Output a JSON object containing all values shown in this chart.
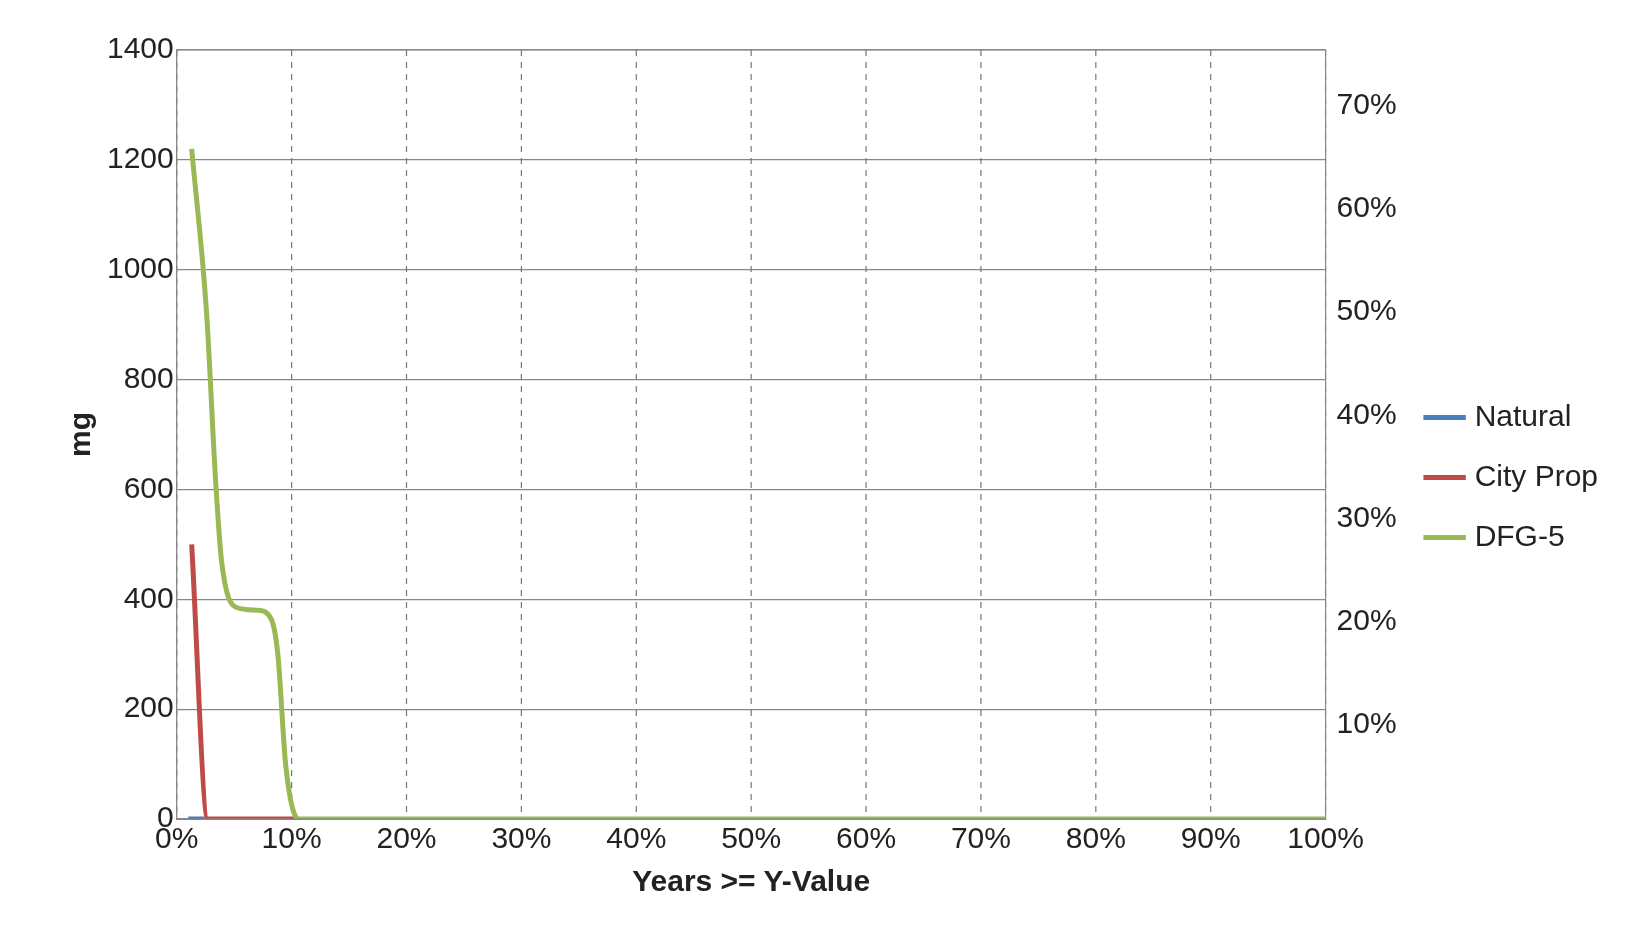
{
  "chart_data": {
    "type": "line",
    "xlabel": "Years >= Y-Value",
    "ylabel": "mg",
    "xlim": [
      0,
      100
    ],
    "xticks": [
      {
        "value": 0,
        "label": "0%"
      },
      {
        "value": 10,
        "label": "10%"
      },
      {
        "value": 20,
        "label": "20%"
      },
      {
        "value": 30,
        "label": "30%"
      },
      {
        "value": 40,
        "label": "40%"
      },
      {
        "value": 50,
        "label": "50%"
      },
      {
        "value": 60,
        "label": "60%"
      },
      {
        "value": 70,
        "label": "70%"
      },
      {
        "value": 80,
        "label": "80%"
      },
      {
        "value": 90,
        "label": "90%"
      },
      {
        "value": 100,
        "label": "100%"
      }
    ],
    "ylim": [
      0,
      1400
    ],
    "yticks": [
      0,
      200,
      400,
      600,
      800,
      1000,
      1200,
      1400
    ],
    "y2lim": [
      0.9,
      75.4
    ],
    "y2ticks": [
      {
        "value": 10,
        "label": "10%"
      },
      {
        "value": 20,
        "label": "20%"
      },
      {
        "value": 30,
        "label": "30%"
      },
      {
        "value": 40,
        "label": "40%"
      },
      {
        "value": 50,
        "label": "50%"
      },
      {
        "value": 60,
        "label": "60%"
      },
      {
        "value": 70,
        "label": "70%"
      }
    ],
    "grid": true,
    "legend": "right",
    "marker": "none",
    "series": [
      {
        "name": "Natural",
        "color": "#4a7ebb",
        "x": [
          1.0,
          2.4
        ],
        "values": [
          0,
          0
        ]
      },
      {
        "name": "City Prop",
        "color": "#be4b48",
        "x": [
          1.3,
          2.7,
          10.5
        ],
        "values": [
          500,
          0,
          0
        ]
      },
      {
        "name": "DFG-5",
        "color": "#98b954",
        "x": [
          1.3,
          2.6,
          3.4,
          3.9,
          5.2,
          7,
          8.2,
          8.8,
          9.5,
          10.6,
          100
        ],
        "values": [
          1220,
          920,
          610,
          470,
          385,
          380,
          365,
          300,
          95,
          0,
          0
        ]
      }
    ]
  }
}
